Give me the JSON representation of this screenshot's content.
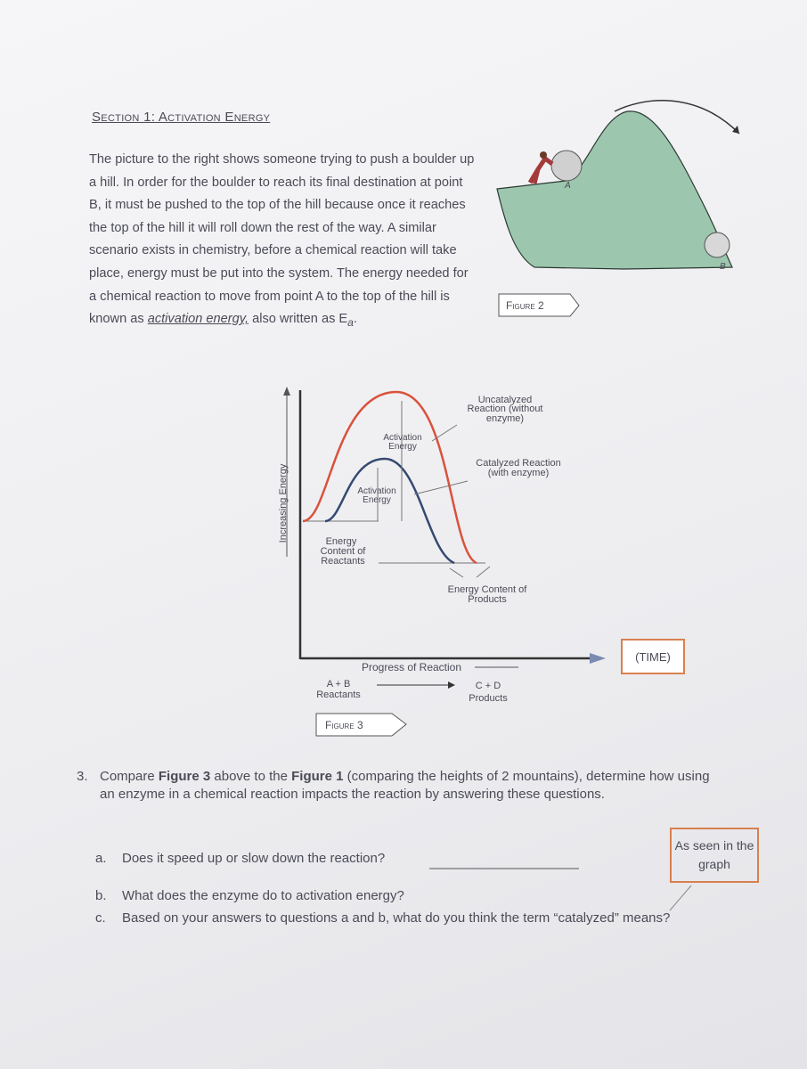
{
  "section_title": "Section 1: Activation Energy",
  "intro": {
    "text_1": "The picture to the right shows someone trying to push a boulder up a hill.  In order for the boulder to reach its final destination at point B, it must be pushed to the top of the hill because once it reaches the top of the hill it will roll down the rest of the way.  A similar scenario exists in chemistry, before a chemical reaction will take place, energy must be put into the system.  The energy needed for a chemical reaction to move from point A to the top of the hill is known as ",
    "term": "activation energy,",
    "text_2": " also written as E",
    "subscript": "a",
    "end": "."
  },
  "figure_2": {
    "label": "Figure 2",
    "point_a": "A",
    "point_b": "B"
  },
  "figure_3": {
    "y_axis": "Increasing Energy",
    "uncatalyzed": [
      "Uncatalyzed",
      "Reaction (without",
      "enzyme)"
    ],
    "catalyzed": [
      "Catalyzed Reaction",
      "(with enzyme)"
    ],
    "activation_upper": [
      "Activation",
      "Energy"
    ],
    "activation_lower": [
      "Activation",
      "Energy"
    ],
    "reactants_energy": [
      "Energy",
      "Content of",
      "Reactants"
    ],
    "products_energy": [
      "Energy Content of",
      "Products"
    ],
    "x_axis": "Progress of Reaction",
    "time": "(TIME)",
    "start": [
      "A + B",
      "Reactants"
    ],
    "end": [
      "C + D",
      "Products"
    ],
    "label": "Figure 3"
  },
  "question": {
    "number": "3.",
    "text_1": "Compare ",
    "bold_1": "Figure 3",
    "text_2": " above to the ",
    "bold_2": "Figure 1",
    "text_3": " (comparing the heights of 2 mountains), determine how using an enzyme in a chemical reaction impacts the reaction by answering these questions.",
    "parts": [
      {
        "letter": "a.",
        "text": "Does it speed up or slow down the reaction?"
      },
      {
        "letter": "b.",
        "text": "What does the enzyme do to activation energy?"
      },
      {
        "letter": "c.",
        "text": "Based on your answers to questions a and b, what do you think the term “catalyzed” means?"
      }
    ]
  },
  "annotation": "As seen in the graph"
}
